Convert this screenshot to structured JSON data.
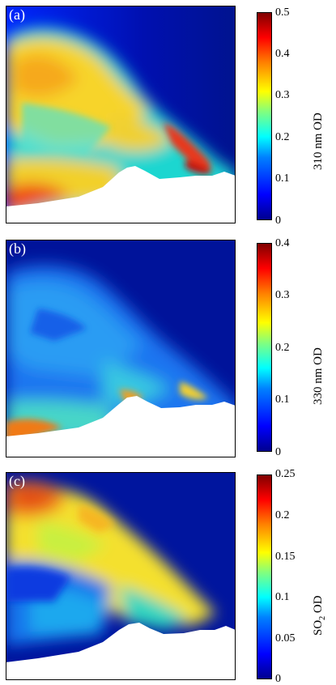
{
  "panels": [
    {
      "label": "(a)",
      "colorbar_label": "310 nm OD",
      "ticks": [
        "0",
        "0.1",
        "0.2",
        "0.3",
        "0.4",
        "0.5"
      ]
    },
    {
      "label": "(b)",
      "colorbar_label": "330 nm OD",
      "ticks": [
        "0",
        "0.1",
        "0.2",
        "0.3",
        "0.4"
      ]
    },
    {
      "label": "(c)",
      "colorbar_label_main": "SO",
      "colorbar_label_sub": "2",
      "colorbar_label_tail": " OD",
      "ticks": [
        "0",
        "0.05",
        "0.1",
        "0.15",
        "0.2",
        "0.25"
      ]
    }
  ],
  "colors": {
    "background_deep": "#000b8a",
    "colormap": "jet",
    "mountain": "#ffffff"
  }
}
